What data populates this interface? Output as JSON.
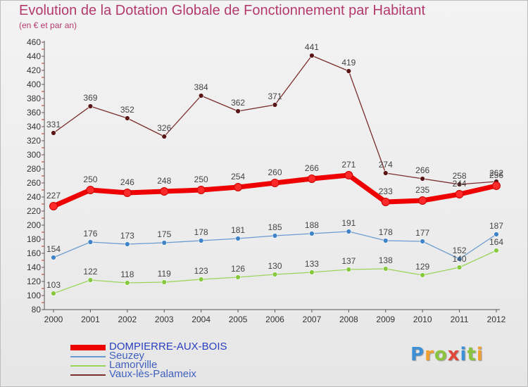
{
  "title": "Evolution de la Dotation Globale de Fonctionnement par Habitant",
  "subtitle": "(en € et par an)",
  "logo": {
    "letters": [
      "P",
      "r",
      "o",
      "x",
      "i",
      "t",
      "i"
    ],
    "colors": [
      "#3d8fd6",
      "#f0a030",
      "#8bc53f",
      "#e0483a",
      "#3d8fd6",
      "#8bc53f",
      "#f0a030"
    ]
  },
  "chart_data": {
    "type": "line",
    "x": [
      "2000",
      "2001",
      "2002",
      "2003",
      "2004",
      "2005",
      "2006",
      "2007",
      "2008",
      "2009",
      "2010",
      "2011",
      "2012"
    ],
    "ylim": [
      80,
      460
    ],
    "ytick_step": 20,
    "yticks": [
      "80",
      "100",
      "120",
      "140",
      "160",
      "180",
      "200",
      "220",
      "240",
      "260",
      "280",
      "300",
      "320",
      "340",
      "360",
      "380",
      "400",
      "420",
      "440",
      "460"
    ],
    "grid": false,
    "legend_position": "bottom-left",
    "series": [
      {
        "name": "DOMPIERRE-AUX-BOIS",
        "color": "#ee0000",
        "marker": "#ff2a2a",
        "emphasis": true,
        "values": [
          227,
          250,
          246,
          248,
          250,
          254,
          260,
          266,
          271,
          233,
          235,
          244,
          256
        ]
      },
      {
        "name": "Seuzey",
        "color": "#6a9bd0",
        "marker": "#3f83c9",
        "emphasis": false,
        "values": [
          154,
          176,
          173,
          175,
          178,
          181,
          185,
          188,
          191,
          178,
          177,
          152,
          187
        ]
      },
      {
        "name": "Lamorville",
        "color": "#9ad45a",
        "marker": "#86c83e",
        "emphasis": false,
        "values": [
          103,
          122,
          118,
          119,
          123,
          126,
          130,
          133,
          137,
          138,
          129,
          140,
          164
        ]
      },
      {
        "name": "Vaux-lès-Palameix",
        "color": "#7a2e2e",
        "marker": "#5a1616",
        "emphasis": false,
        "values": [
          331,
          369,
          352,
          326,
          384,
          362,
          371,
          441,
          419,
          274,
          266,
          258,
          262
        ]
      }
    ]
  }
}
